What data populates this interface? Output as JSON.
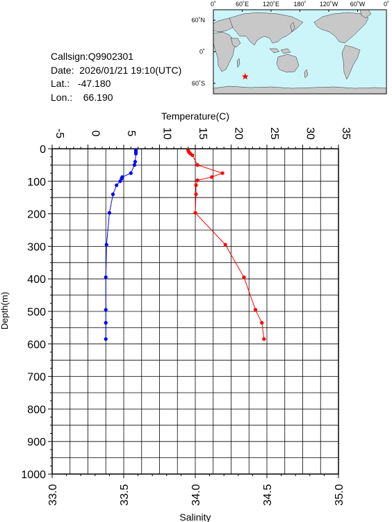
{
  "info": {
    "callsign": "Callsign:Q9902301",
    "date": "Date:  2026/01/21 19:10(UTC)",
    "lat": "Lat.:   -47.180",
    "lon": "Lon.:    66.190"
  },
  "map": {
    "top_labels": [
      "0˚",
      "60˚E",
      "120˚E",
      "180˚",
      "120˚W",
      "60˚W",
      "0˚"
    ],
    "left_labels": [
      "60˚N",
      "0˚",
      "60˚S"
    ],
    "marker_lon": 66.19,
    "marker_lat": -47.18,
    "colors": {
      "ocean": "#ccf5fa",
      "land": "#c8c8c8",
      "marker": "#ff0000"
    }
  },
  "chart_data": {
    "type": "line",
    "title": "",
    "temperature_axis": {
      "label": "Temperature(C)",
      "range": [
        -5,
        35
      ],
      "ticks": [
        "-5",
        "0",
        "5",
        "10",
        "15",
        "20",
        "25",
        "30",
        "35"
      ]
    },
    "salinity_axis": {
      "label": "Salinity",
      "range": [
        33.0,
        35.0
      ],
      "ticks": [
        "33.0",
        "33.5",
        "34.0",
        "34.5",
        "35.0"
      ]
    },
    "depth_axis": {
      "label": "Depth(m)",
      "range": [
        0,
        1000
      ],
      "ticks": [
        "0",
        "100",
        "200",
        "300",
        "400",
        "500",
        "600",
        "700",
        "800",
        "900",
        "1000"
      ]
    },
    "grid": true,
    "series": [
      {
        "color": "#0000ff",
        "axis": "temperature",
        "points": [
          [
            6.7,
            5
          ],
          [
            6.7,
            10
          ],
          [
            6.7,
            15
          ],
          [
            6.6,
            40
          ],
          [
            6.5,
            50
          ],
          [
            6.0,
            75
          ],
          [
            4.8,
            87
          ],
          [
            4.7,
            92
          ],
          [
            4.5,
            100
          ],
          [
            4.0,
            112
          ],
          [
            3.5,
            140
          ],
          [
            3.0,
            197
          ],
          [
            2.6,
            295
          ],
          [
            2.5,
            395
          ],
          [
            2.5,
            495
          ],
          [
            2.5,
            535
          ],
          [
            2.5,
            585
          ]
        ]
      },
      {
        "color": "#ff0000",
        "axis": "temperature",
        "points": [
          [
            14.0,
            5
          ],
          [
            14.1,
            10
          ],
          [
            14.3,
            15
          ],
          [
            14.6,
            20
          ],
          [
            15.3,
            50
          ],
          [
            18.8,
            75
          ],
          [
            17.3,
            87
          ],
          [
            15.3,
            97
          ],
          [
            15.1,
            112
          ],
          [
            15.1,
            140
          ],
          [
            15.0,
            197
          ],
          [
            19.2,
            295
          ],
          [
            21.8,
            395
          ],
          [
            23.4,
            495
          ],
          [
            24.3,
            535
          ],
          [
            24.6,
            585
          ]
        ]
      }
    ]
  }
}
